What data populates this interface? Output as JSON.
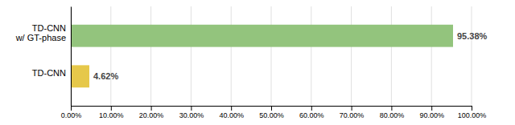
{
  "chart_data": {
    "type": "bar",
    "orientation": "horizontal",
    "categories": [
      "TD-CNN\nw/ GT-phase",
      "TD-CNN"
    ],
    "values": [
      95.38,
      4.62
    ],
    "value_labels": [
      "95.38%",
      "4.62%"
    ],
    "data_labels": true,
    "colors": [
      "#93c47d",
      "#e6c84a"
    ],
    "xlim": [
      0,
      100
    ],
    "xticks": [
      {
        "value": 0,
        "label": "0.00%"
      },
      {
        "value": 10,
        "label": "10.00%"
      },
      {
        "value": 20,
        "label": "20.00%"
      },
      {
        "value": 30,
        "label": "30.00%"
      },
      {
        "value": 40,
        "label": "40.00%"
      },
      {
        "value": 50,
        "label": "50.00%"
      },
      {
        "value": 60,
        "label": "60.00%"
      },
      {
        "value": 70,
        "label": "70.00%"
      },
      {
        "value": 80,
        "label": "80.00%"
      },
      {
        "value": 90,
        "label": "90.00%"
      },
      {
        "value": 100,
        "label": "100.00%"
      }
    ],
    "grid": true
  }
}
